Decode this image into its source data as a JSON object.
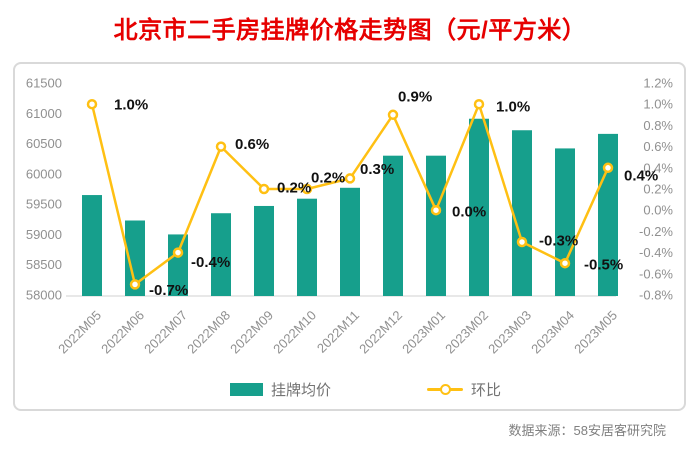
{
  "title": "北京市二手房挂牌价格走势图（元/平方米）",
  "source": "数据来源：58安居客研究院",
  "legend": {
    "items": [
      {
        "label": "挂牌均价",
        "type": "bar"
      },
      {
        "label": "环比",
        "type": "line"
      }
    ]
  },
  "colors": {
    "title": "#e60000",
    "bar": "#169f8c",
    "line": "#ffc013",
    "marker_fill": "#ffffff",
    "data_label": "#111111",
    "axis_text": "#909090",
    "axis_line": "#e1e1e1",
    "card_border": "#d9d9d9"
  },
  "chart_data": {
    "type": "bar+line",
    "title": "北京市二手房挂牌价格走势图（元/平方米）",
    "categories": [
      "2022M05",
      "2022M06",
      "2022M07",
      "2022M08",
      "2022M09",
      "2022M10",
      "2022M11",
      "2022M12",
      "2023M01",
      "2023M02",
      "2023M03",
      "2023M04",
      "2023M05"
    ],
    "series": [
      {
        "name": "挂牌均价",
        "type": "bar",
        "axis": "left",
        "values": [
          59650,
          59230,
          59000,
          59350,
          59470,
          59590,
          59770,
          60300,
          60300,
          60910,
          60720,
          60420,
          60660
        ]
      },
      {
        "name": "环比",
        "type": "line",
        "axis": "right",
        "values": [
          1.0,
          -0.7,
          -0.4,
          0.6,
          0.2,
          0.2,
          0.3,
          0.9,
          0.0,
          1.0,
          -0.3,
          -0.5,
          0.4
        ],
        "point_labels": [
          "1.0%",
          "-0.7%",
          "-0.4%",
          "0.6%",
          "0.2%",
          "0.2%",
          "0.3%",
          "0.9%",
          "0.0%",
          "1.0%",
          "-0.3%",
          "-0.5%",
          "0.4%"
        ],
        "label_offsets": [
          [
            22,
            0
          ],
          [
            14,
            5
          ],
          [
            13,
            9
          ],
          [
            14,
            -3
          ],
          [
            13,
            -2
          ],
          [
            4,
            -12
          ],
          [
            10,
            -10
          ],
          [
            5,
            -19
          ],
          [
            16,
            1
          ],
          [
            17,
            2
          ],
          [
            17,
            -2
          ],
          [
            19,
            1
          ],
          [
            16,
            7
          ]
        ]
      }
    ],
    "left_axis": {
      "min": 58000,
      "max": 61500,
      "step": 500,
      "ticks": [
        "58000",
        "58500",
        "59000",
        "59500",
        "60000",
        "60500",
        "61000",
        "61500"
      ]
    },
    "right_axis": {
      "min": -0.8,
      "max": 1.2,
      "step": 0.2,
      "ticks": [
        "-0.8%",
        "-0.6%",
        "-0.4%",
        "-0.2%",
        "0.0%",
        "0.2%",
        "0.4%",
        "0.6%",
        "0.8%",
        "1.0%",
        "1.2%"
      ]
    },
    "grid": false,
    "legend_position": "bottom"
  }
}
